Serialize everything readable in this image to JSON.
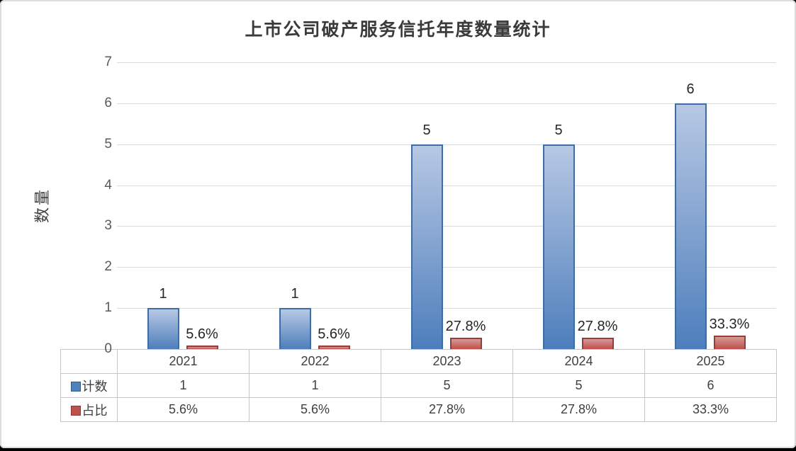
{
  "chart_data": {
    "type": "bar",
    "title": "上市公司破产服务信托年度数量统计",
    "ylabel": "数量",
    "xlabel": "",
    "categories": [
      "2021",
      "2022",
      "2023",
      "2024",
      "2025"
    ],
    "series": [
      {
        "key": "count",
        "name": "计数",
        "values": [
          1,
          1,
          5,
          5,
          6
        ],
        "data_labels": [
          "1",
          "1",
          "5",
          "5",
          "6"
        ],
        "fill_top": "#b7c8e4",
        "fill_bottom": "#4d7ebc",
        "border": "#3e6da6"
      },
      {
        "key": "ratio",
        "name": "占比",
        "values": [
          0.056,
          0.056,
          0.278,
          0.278,
          0.333
        ],
        "data_labels": [
          "5.6%",
          "5.6%",
          "27.8%",
          "27.8%",
          "33.3%"
        ],
        "fill_top": "#d59a97",
        "fill_bottom": "#bf4f4c",
        "border": "#953d39"
      }
    ],
    "ylim": [
      0,
      7
    ],
    "yticks": [
      "0",
      "1",
      "2",
      "3",
      "4",
      "5",
      "6",
      "7"
    ],
    "grid": true,
    "legend_position": "table-left"
  },
  "table": {
    "columns": [
      "2021",
      "2022",
      "2023",
      "2024",
      "2025"
    ],
    "rows": [
      {
        "key": "count",
        "label": "计数",
        "swatch_fill": "#4f81bd",
        "swatch_border": "#2e5a88",
        "values": [
          "1",
          "1",
          "5",
          "5",
          "6"
        ]
      },
      {
        "key": "ratio",
        "label": "占比",
        "swatch_fill": "#c0504d",
        "swatch_border": "#8e3532",
        "values": [
          "5.6%",
          "5.6%",
          "27.8%",
          "27.8%",
          "33.3%"
        ]
      }
    ]
  }
}
